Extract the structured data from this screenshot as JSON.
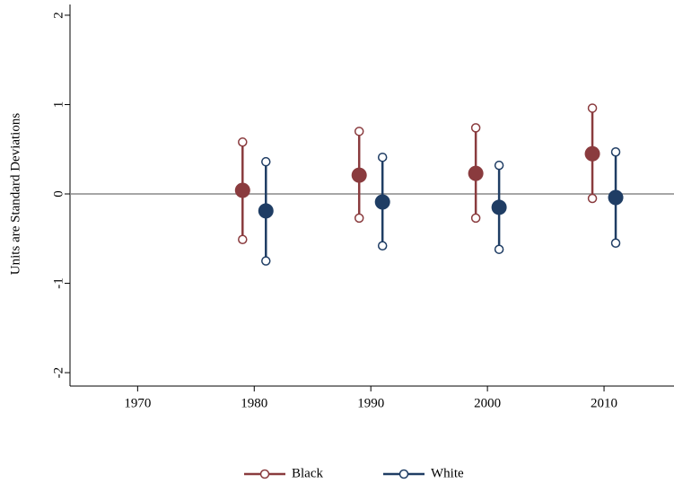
{
  "chart_data": {
    "type": "errorbar",
    "y_label": "Units are Standard Deviations",
    "xlim": [
      1964.2,
      2016
    ],
    "xticks": [
      1970,
      1980,
      1990,
      2000,
      2010
    ],
    "ylim": [
      -2.15,
      2.12
    ],
    "yticks": [
      -2,
      -1,
      0,
      1,
      2
    ],
    "reference_line": 0,
    "grid": false,
    "legend": "bottom",
    "series": [
      {
        "name": "Black",
        "color": "#8a3b3e",
        "x": [
          1979,
          1989,
          1999,
          2009
        ],
        "values": [
          0.04,
          0.21,
          0.23,
          0.45
        ],
        "lower": [
          -0.51,
          -0.27,
          -0.27,
          -0.05
        ],
        "upper": [
          0.58,
          0.7,
          0.74,
          0.96
        ]
      },
      {
        "name": "White",
        "color": "#1f3d64",
        "x": [
          1981,
          1991,
          2001,
          2011
        ],
        "values": [
          -0.19,
          -0.09,
          -0.15,
          -0.04
        ],
        "lower": [
          -0.75,
          -0.58,
          -0.62,
          -0.55
        ],
        "upper": [
          0.36,
          0.41,
          0.32,
          0.47
        ]
      }
    ]
  }
}
